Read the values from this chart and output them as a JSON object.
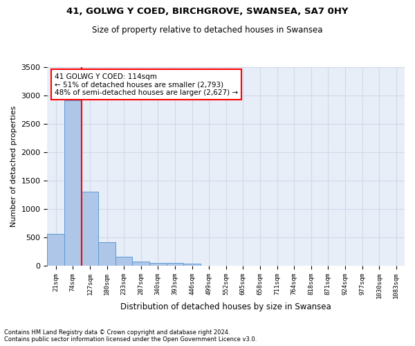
{
  "title_line1": "41, GOLWG Y COED, BIRCHGROVE, SWANSEA, SA7 0HY",
  "title_line2": "Size of property relative to detached houses in Swansea",
  "xlabel": "Distribution of detached houses by size in Swansea",
  "ylabel": "Number of detached properties",
  "footnote": "Contains HM Land Registry data © Crown copyright and database right 2024.\nContains public sector information licensed under the Open Government Licence v3.0.",
  "bin_labels": [
    "21sqm",
    "74sqm",
    "127sqm",
    "180sqm",
    "233sqm",
    "287sqm",
    "340sqm",
    "393sqm",
    "446sqm",
    "499sqm",
    "552sqm",
    "605sqm",
    "658sqm",
    "711sqm",
    "764sqm",
    "818sqm",
    "871sqm",
    "924sqm",
    "977sqm",
    "1030sqm",
    "1083sqm"
  ],
  "bar_heights": [
    560,
    2920,
    1310,
    410,
    155,
    80,
    55,
    45,
    40,
    0,
    0,
    0,
    0,
    0,
    0,
    0,
    0,
    0,
    0,
    0,
    0
  ],
  "bar_color": "#aec6e8",
  "bar_edge_color": "#5b9bd5",
  "grid_color": "#d0d8e8",
  "background_color": "#e8eef8",
  "vline_color": "red",
  "annotation_text": "41 GOLWG Y COED: 114sqm\n← 51% of detached houses are smaller (2,793)\n48% of semi-detached houses are larger (2,627) →",
  "annotation_box_color": "white",
  "annotation_box_edge_color": "red",
  "ylim": [
    0,
    3500
  ],
  "yticks": [
    0,
    500,
    1000,
    1500,
    2000,
    2500,
    3000,
    3500
  ]
}
